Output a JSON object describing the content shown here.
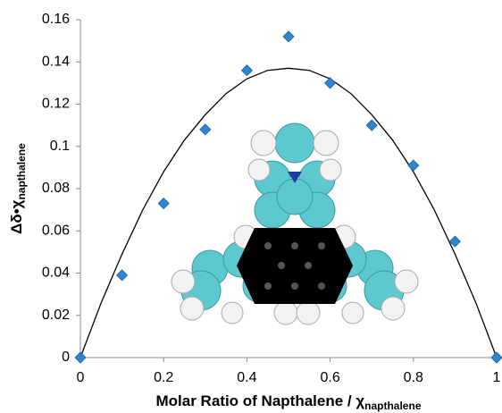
{
  "chart_data": {
    "type": "scatter",
    "xlabel": {
      "main": "Molar Ratio of Napthalene / χ",
      "sub": "napthalene"
    },
    "ylabel": {
      "main": "Δδ•χ",
      "sub": "napthalene"
    },
    "xlim": [
      0,
      1
    ],
    "ylim": [
      0,
      0.16
    ],
    "xticks": [
      0,
      0.2,
      0.4,
      0.6,
      0.8,
      1
    ],
    "yticks": [
      0,
      0.02,
      0.04,
      0.06,
      0.08,
      0.1,
      0.12,
      0.14,
      0.16
    ],
    "grid": false,
    "series": [
      {
        "type": "scatter",
        "color": "#2f86d0",
        "x": [
          0,
          0.1,
          0.2,
          0.3,
          0.4,
          0.5,
          0.6,
          0.7,
          0.8,
          0.9,
          1
        ],
        "values": [
          0,
          0.039,
          0.073,
          0.108,
          0.136,
          0.152,
          0.13,
          0.11,
          0.091,
          0.055,
          0
        ]
      },
      {
        "type": "line",
        "color": "#000000",
        "x": [
          0,
          0.05,
          0.1,
          0.15,
          0.2,
          0.25,
          0.3,
          0.35,
          0.4,
          0.45,
          0.5,
          0.55,
          0.6,
          0.65,
          0.7,
          0.75,
          0.8,
          0.85,
          0.9,
          0.95,
          1
        ],
        "values": [
          0,
          0.026,
          0.049,
          0.07,
          0.088,
          0.103,
          0.115,
          0.125,
          0.132,
          0.136,
          0.137,
          0.136,
          0.132,
          0.125,
          0.115,
          0.103,
          0.088,
          0.07,
          0.049,
          0.026,
          0
        ]
      }
    ]
  }
}
